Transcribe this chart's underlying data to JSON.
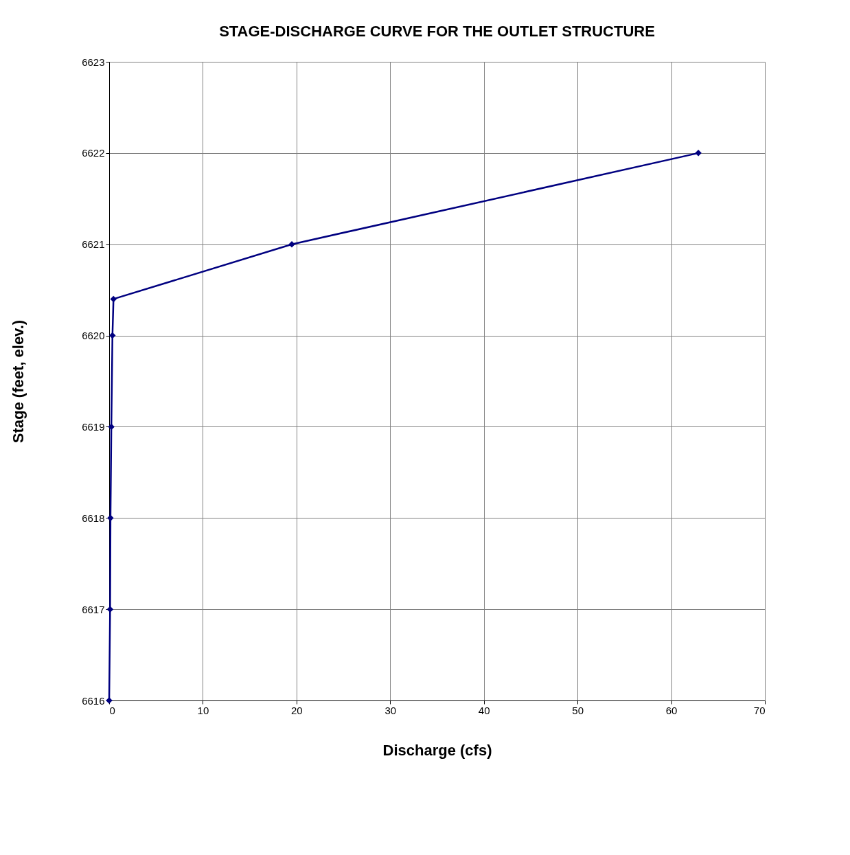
{
  "chart_data": {
    "type": "line",
    "title": "STAGE-DISCHARGE CURVE FOR THE OUTLET STRUCTURE",
    "xlabel": "Discharge (cfs)",
    "ylabel": "Stage (feet, elev.)",
    "x": [
      0,
      0.1,
      0.14,
      0.23,
      0.35,
      0.46,
      19.5,
      62.9
    ],
    "series": [
      {
        "color": "#000080",
        "values": [
          6616,
          6617,
          6618,
          6619,
          6620,
          6620.4,
          6621,
          6622
        ]
      }
    ],
    "xlim": [
      0,
      70
    ],
    "xticks": [
      0,
      10,
      20,
      30,
      40,
      50,
      60,
      70
    ],
    "ylim": [
      6616,
      6623
    ],
    "yticks": [
      6616,
      6617,
      6618,
      6619,
      6620,
      6621,
      6622,
      6623
    ],
    "grid": true,
    "marker": "diamond",
    "line_style": "solid"
  }
}
